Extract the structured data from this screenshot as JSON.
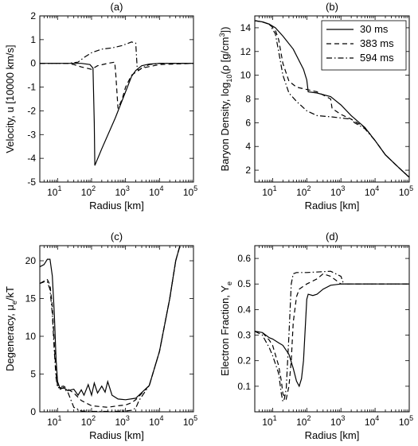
{
  "chart_data": [
    {
      "type": "line",
      "title": "(a)",
      "xlabel": "Radius [km]",
      "ylabel": "Velocity, u [10000 km/s]",
      "xscale": "log",
      "xlim": [
        3,
        100000
      ],
      "ylim": [
        -5,
        2
      ],
      "xticks": [
        [
          "10^1",
          "10",
          "1"
        ],
        [
          "10^2",
          "10",
          "2"
        ],
        [
          "10^3",
          "10",
          "3"
        ],
        [
          "10^4",
          "10",
          "4"
        ],
        [
          "10^5",
          "10",
          "5"
        ]
      ],
      "yticks": [
        "-5",
        "-4",
        "-3",
        "-2",
        "-1",
        "0",
        "1",
        "2"
      ],
      "series": [
        {
          "name": "30 ms",
          "dash": "solid",
          "x": [
            3,
            10,
            50,
            90,
            110,
            120,
            125,
            200,
            500,
            1000,
            1500,
            2000,
            3000,
            5000,
            10000,
            100000
          ],
          "y": [
            0,
            0,
            0,
            -0.05,
            -0.2,
            -2.5,
            -4.3,
            -3.6,
            -2.3,
            -1.2,
            -0.55,
            -0.3,
            -0.1,
            -0.03,
            0,
            0
          ]
        },
        {
          "name": "383 ms",
          "dash": "dashed",
          "x": [
            3,
            20,
            30,
            50,
            100,
            150,
            300,
            480,
            520,
            600,
            800,
            1000,
            1500,
            3000,
            10000,
            100000
          ],
          "y": [
            0,
            0,
            -0.05,
            -0.15,
            -0.25,
            -0.1,
            0,
            0.05,
            -0.5,
            -1.9,
            -1.5,
            -1.0,
            -0.5,
            -0.2,
            -0.05,
            0
          ]
        },
        {
          "name": "594 ms",
          "dash": "dashdot",
          "x": [
            3,
            20,
            40,
            60,
            100,
            200,
            400,
            800,
            1500,
            2000,
            2200,
            2400,
            3000,
            5000,
            10000,
            100000
          ],
          "y": [
            0,
            0,
            0.05,
            0.25,
            0.45,
            0.6,
            0.65,
            0.75,
            0.9,
            0.85,
            -0.2,
            -0.3,
            -0.2,
            -0.05,
            0,
            0
          ]
        }
      ]
    },
    {
      "type": "line",
      "title": "(b)",
      "xlabel": "Radius [km]",
      "ylabel": "Baryon Density, log",
      "ylabel_sub": "10",
      "ylabel_rest": "(ρ [g/cm",
      "ylabel_sup": "3",
      "ylabel_end": "])",
      "xscale": "log",
      "xlim": [
        3,
        100000
      ],
      "ylim": [
        1,
        15
      ],
      "xticks": [
        [
          "10^1",
          "10",
          "1"
        ],
        [
          "10^2",
          "10",
          "2"
        ],
        [
          "10^3",
          "10",
          "3"
        ],
        [
          "10^4",
          "10",
          "4"
        ],
        [
          "10^5",
          "10",
          "5"
        ]
      ],
      "yticks": [
        "2",
        "4",
        "6",
        "8",
        "10",
        "12",
        "14"
      ],
      "legend_position": "top-right",
      "series": [
        {
          "name": "30 ms",
          "dash": "solid",
          "x": [
            3,
            5,
            8,
            12,
            20,
            40,
            80,
            100,
            110,
            200,
            500,
            1000,
            2000,
            5000,
            10000,
            20000,
            50000,
            100000
          ],
          "y": [
            14.6,
            14.5,
            14.3,
            14.0,
            13.3,
            12.2,
            10.5,
            9.6,
            8.6,
            8.5,
            8.2,
            7.5,
            6.6,
            5.6,
            4.5,
            3.3,
            2.2,
            1.4
          ]
        },
        {
          "name": "383 ms",
          "dash": "dashed",
          "x": [
            3,
            5,
            8,
            12,
            15,
            20,
            30,
            50,
            100,
            200,
            500,
            550,
            1000,
            2000,
            5000,
            10000,
            20000,
            50000,
            100000
          ],
          "y": [
            14.6,
            14.5,
            14.3,
            13.8,
            13.0,
            11.0,
            9.5,
            9.0,
            8.8,
            8.6,
            8.0,
            7.2,
            6.7,
            6.3,
            5.6,
            4.5,
            3.3,
            2.2,
            1.4
          ]
        },
        {
          "name": "594 ms",
          "dash": "dashdot",
          "x": [
            3,
            5,
            8,
            12,
            15,
            20,
            30,
            50,
            100,
            200,
            500,
            1000,
            2000,
            2500,
            5000,
            10000,
            20000,
            50000,
            100000
          ],
          "y": [
            14.6,
            14.5,
            14.3,
            13.5,
            12.0,
            10.0,
            8.5,
            7.8,
            7.0,
            6.6,
            6.5,
            6.4,
            6.3,
            6.0,
            5.5,
            4.5,
            3.3,
            2.2,
            1.4
          ]
        }
      ]
    },
    {
      "type": "line",
      "title": "(c)",
      "xlabel": "Radius [km]",
      "ylabel": "Degeneracy, μ",
      "ylabel_sub": "e",
      "ylabel_end": "/kT",
      "xscale": "log",
      "xlim": [
        3,
        100000
      ],
      "ylim": [
        0,
        22
      ],
      "xticks": [
        [
          "10^1",
          "10",
          "1"
        ],
        [
          "10^2",
          "10",
          "2"
        ],
        [
          "10^3",
          "10",
          "3"
        ],
        [
          "10^4",
          "10",
          "4"
        ],
        [
          "10^5",
          "10",
          "5"
        ]
      ],
      "yticks": [
        "0",
        "5",
        "10",
        "15",
        "20"
      ],
      "series": [
        {
          "name": "30 ms",
          "dash": "solid",
          "x": [
            3,
            4,
            5,
            6,
            7,
            8,
            9,
            10,
            12,
            15,
            20,
            30,
            40,
            50,
            60,
            80,
            100,
            120,
            150,
            200,
            250,
            300,
            400,
            600,
            1000,
            2000,
            5000,
            10000,
            20000,
            30000,
            40000
          ],
          "y": [
            19.2,
            19.5,
            20.2,
            20.2,
            18,
            13,
            7,
            4,
            3,
            3.2,
            2.8,
            3.0,
            2.2,
            2.9,
            2.2,
            3.6,
            2.2,
            3.8,
            2.5,
            3.4,
            2.6,
            4.0,
            2.2,
            1.7,
            1.6,
            1.8,
            3.5,
            8,
            15,
            20,
            22
          ]
        },
        {
          "name": "383 ms",
          "dash": "dashed",
          "x": [
            3,
            4,
            5,
            6,
            7,
            8,
            9,
            10,
            12,
            15,
            20,
            30,
            50,
            100,
            300,
            600,
            1000,
            1500,
            2000,
            5000,
            10000,
            20000,
            30000,
            40000
          ],
          "y": [
            17,
            17.2,
            17.5,
            16.8,
            14,
            9,
            5,
            3.5,
            3.3,
            3.4,
            3.0,
            2.5,
            1.5,
            0.8,
            0.6,
            0.8,
            0.9,
            1.2,
            1.6,
            3.5,
            8,
            15,
            20,
            22
          ]
        },
        {
          "name": "594 ms",
          "dash": "dashdot",
          "x": [
            3,
            4,
            5,
            6,
            7,
            8,
            9,
            10,
            12,
            15,
            20,
            30,
            50,
            100,
            500,
            1000,
            1500,
            2000,
            2500,
            5000,
            10000,
            20000,
            30000,
            40000
          ],
          "y": [
            17,
            17.3,
            17.2,
            16.2,
            13,
            8,
            4.5,
            3.2,
            3.2,
            3.1,
            2.6,
            0.6,
            0.1,
            0.05,
            0.05,
            0.1,
            0.2,
            0.5,
            1.5,
            3.5,
            8,
            15,
            20,
            22
          ]
        }
      ]
    },
    {
      "type": "line",
      "title": "(d)",
      "xlabel": "Radius [km]",
      "ylabel": "Electron Fraction, Y",
      "ylabel_sub": "e",
      "xscale": "log",
      "xlim": [
        3,
        100000
      ],
      "ylim": [
        0,
        0.65
      ],
      "xticks": [
        [
          "10^1",
          "10",
          "1"
        ],
        [
          "10^2",
          "10",
          "2"
        ],
        [
          "10^3",
          "10",
          "3"
        ],
        [
          "10^4",
          "10",
          "4"
        ],
        [
          "10^5",
          "10",
          "5"
        ]
      ],
      "yticks": [
        "0.1",
        "0.2",
        "0.3",
        "0.4",
        "0.5",
        "0.6"
      ],
      "series": [
        {
          "name": "30 ms",
          "dash": "solid",
          "x": [
            3,
            5,
            8,
            10,
            15,
            20,
            30,
            40,
            50,
            60,
            70,
            80,
            100,
            110,
            150,
            200,
            300,
            500,
            1000,
            100000
          ],
          "y": [
            0.315,
            0.31,
            0.29,
            0.285,
            0.27,
            0.26,
            0.225,
            0.17,
            0.12,
            0.1,
            0.13,
            0.2,
            0.44,
            0.46,
            0.455,
            0.46,
            0.48,
            0.495,
            0.5,
            0.5
          ]
        },
        {
          "name": "383 ms",
          "dash": "dashed",
          "x": [
            3,
            5,
            8,
            10,
            15,
            18,
            20,
            25,
            30,
            35,
            40,
            50,
            60,
            100,
            200,
            300,
            500,
            1000,
            2000,
            100000
          ],
          "y": [
            0.315,
            0.31,
            0.28,
            0.26,
            0.18,
            0.12,
            0.07,
            0.05,
            0.1,
            0.2,
            0.35,
            0.45,
            0.48,
            0.5,
            0.52,
            0.54,
            0.53,
            0.5,
            0.5,
            0.5
          ]
        },
        {
          "name": "594 ms",
          "dash": "dashdot",
          "x": [
            3,
            5,
            8,
            10,
            15,
            18,
            20,
            22,
            25,
            30,
            35,
            40,
            50,
            100,
            500,
            1000,
            1200,
            2000,
            100000
          ],
          "y": [
            0.315,
            0.3,
            0.25,
            0.22,
            0.15,
            0.07,
            0.04,
            0.05,
            0.09,
            0.3,
            0.5,
            0.54,
            0.545,
            0.545,
            0.55,
            0.53,
            0.5,
            0.5,
            0.5
          ]
        }
      ]
    }
  ]
}
